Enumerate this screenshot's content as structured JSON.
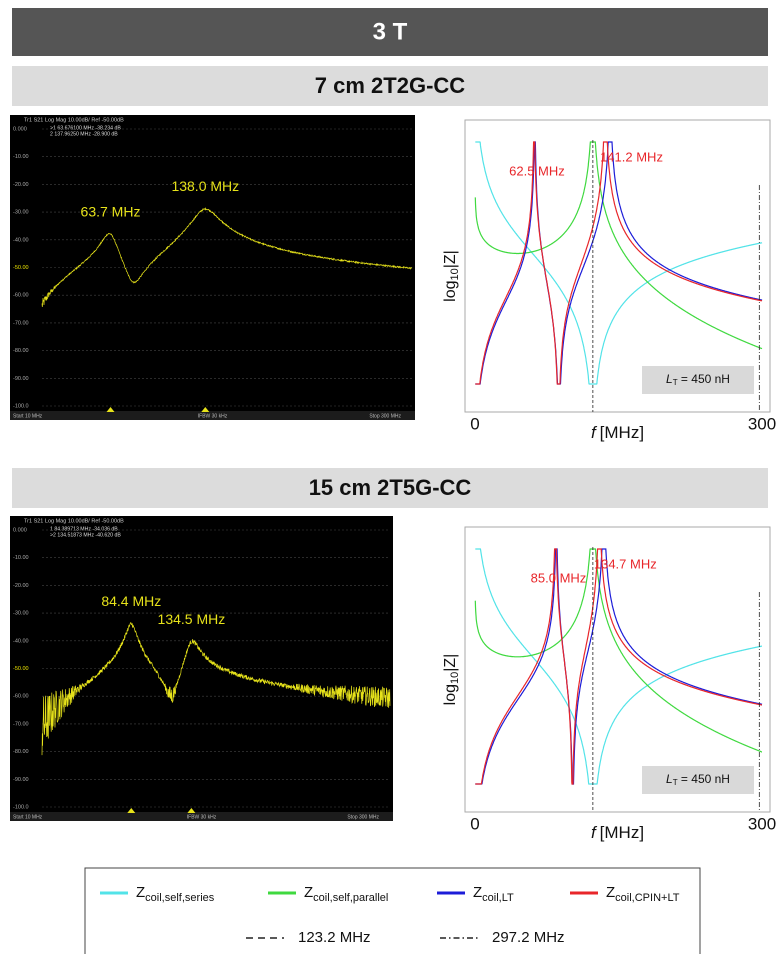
{
  "header": "3 T",
  "sections": [
    {
      "title": "7 cm 2T2G-CC",
      "vna": {
        "header": "Tr1 S21 Log Mag 10.00dB/ Ref -50.00dB",
        "markers": [
          ">1  63.676100 MHz  -38.234 dB",
          " 2  137.96250 MHz  -28.900 dB"
        ],
        "yticks": [
          "0.000",
          "-10.00",
          "-20.00",
          "-30.00",
          "-40.00",
          "-50.00",
          "-60.00",
          "-70.00",
          "-80.00",
          "-90.00",
          "-100.0"
        ],
        "start": "Start 10 MHz",
        "ifbw": "IFBW 30 kHz",
        "stop": "Stop 300 MHz",
        "peaks": [
          "63.7 MHz",
          "138.0 MHz"
        ]
      },
      "sim": {
        "peaks": [
          "62.5 MHz",
          "141.2 MHz"
        ],
        "xmin": "0",
        "xmax": "300",
        "xlabel": {
          "symbol": "f",
          "unit": "[MHz]"
        },
        "ylabel": {
          "base": "log",
          "sub": "10",
          "rest": "|Z|"
        },
        "inductance": {
          "symbol": "L",
          "sub": "T",
          "rest": " = 450 nH"
        }
      }
    },
    {
      "title": "15 cm 2T5G-CC",
      "vna": {
        "header": "Tr1 S21 Log Mag 10.00dB/ Ref -50.00dB",
        "markers": [
          " 1  84.389713 MHz  -34.036 dB",
          ">2  134.51873 MHz  -40.620 dB"
        ],
        "yticks": [
          "0.000",
          "-10.00",
          "-20.00",
          "-30.00",
          "-40.00",
          "-50.00",
          "-60.00",
          "-70.00",
          "-80.00",
          "-90.00",
          "-100.0"
        ],
        "start": "Start 10 MHz",
        "ifbw": "IFBW 30 kHz",
        "stop": "Stop 300 MHz",
        "peaks": [
          "84.4 MHz",
          "134.5 MHz"
        ]
      },
      "sim": {
        "peaks": [
          "85.0 MHz",
          "134.7 MHz"
        ],
        "xmin": "0",
        "xmax": "300",
        "xlabel": {
          "symbol": "f",
          "unit": "[MHz]"
        },
        "ylabel": {
          "base": "log",
          "sub": "10",
          "rest": "|Z|"
        },
        "inductance": {
          "symbol": "L",
          "sub": "T",
          "rest": " = 450 nH"
        }
      }
    }
  ],
  "legend": {
    "items": [
      {
        "symbol": "Z",
        "sub": "coil,self,series",
        "color": "#52e3e8"
      },
      {
        "symbol": "Z",
        "sub": "coil,self,parallel",
        "color": "#3fd93f"
      },
      {
        "symbol": "Z",
        "sub": "coil,LT",
        "color": "#1c1cd8"
      },
      {
        "symbol": "Z",
        "sub": "coil,CPIN+LT",
        "color": "#e8262a"
      }
    ],
    "lines": [
      "123.2 MHz",
      "297.2 MHz"
    ]
  }
}
